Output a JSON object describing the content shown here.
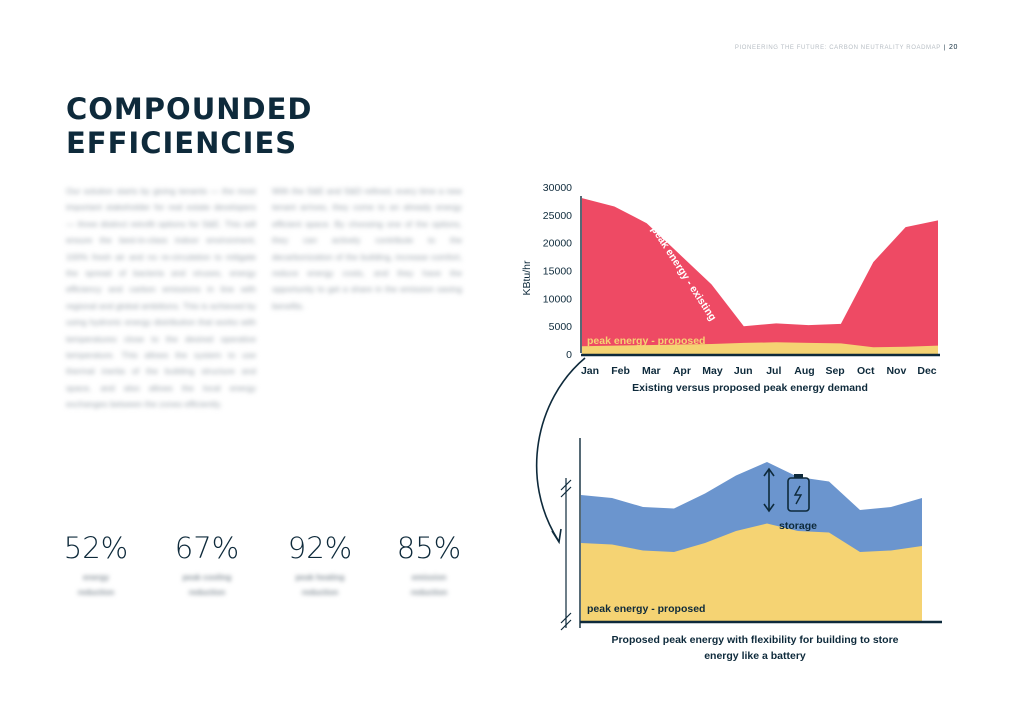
{
  "header": {
    "running_title": "PIONEERING THE FUTURE: CARBON NEUTRALITY ROADMAP",
    "page_number": "20"
  },
  "title_line1": "COMPOUNDED",
  "title_line2": "EFFICIENCIES",
  "body": {
    "col1": "Our solution starts by giving tenants — the most important stakeholder for real estate developers — three distinct retrofit options for S&E. This will ensure the best-in-class indoor environment, 100% fresh air and no re-circulation to mitigate the spread of bacteria and viruses, energy efficiency and carbon emissions in line with regional and global ambitions. This is achieved by using hydronic energy distribution that works with temperatures close to the desired operative temperature. This allows the system to use thermal inertia of the building structure and space, and also allows the local energy exchanges between the zones efficiently.",
    "col2": "With the S&E and S&D refined, every time a new tenant arrives, they come to an already energy efficient space. By choosing one of the options, they can actively contribute to the decarbonization of the building, increase comfort, reduce energy costs, and they have the opportunity to get a share in the emission saving benefits."
  },
  "stats": [
    {
      "value": "52%",
      "label1": "energy",
      "label2": "reduction"
    },
    {
      "value": "67%",
      "label1": "peak cooling",
      "label2": "reduction"
    },
    {
      "value": "92%",
      "label1": "peak heating",
      "label2": "reduction"
    },
    {
      "value": "85%",
      "label1": "emission",
      "label2": "reduction"
    }
  ],
  "colors": {
    "existing": "#ee4a64",
    "proposed": "#f5d373",
    "storage": "#6b95ce",
    "ink": "#0e2a3b"
  },
  "chart_data": [
    {
      "type": "area",
      "title": "Existing versus proposed peak energy demand",
      "ylabel": "KBtu/hr",
      "xlabel": "",
      "ylim": [
        0,
        30000
      ],
      "yticks": [
        0,
        5000,
        10000,
        15000,
        20000,
        25000,
        30000
      ],
      "categories": [
        "Jan",
        "Feb",
        "Mar",
        "Apr",
        "May",
        "Jun",
        "Jul",
        "Aug",
        "Sep",
        "Oct",
        "Nov",
        "Dec"
      ],
      "series": [
        {
          "name": "peak energy - existing",
          "values": [
            28000,
            26500,
            23500,
            18000,
            12500,
            5000,
            5500,
            5200,
            5400,
            16500,
            22800,
            24000
          ]
        },
        {
          "name": "peak energy - proposed",
          "values": [
            1400,
            1500,
            1600,
            1700,
            1800,
            2000,
            2100,
            2000,
            1900,
            1200,
            1300,
            1500
          ]
        }
      ]
    },
    {
      "type": "area",
      "title": "Proposed peak energy with flexibility for building to store energy like a battery",
      "annotation": "storage",
      "series": [
        {
          "name": "peak energy - proposed",
          "values": [
            52,
            51,
            47,
            46,
            52,
            60,
            65,
            60,
            59,
            46,
            47,
            50
          ]
        },
        {
          "name": "",
          "values": [
            84,
            82,
            76,
            75,
            85,
            97,
            106,
            96,
            93,
            74,
            76,
            82
          ]
        }
      ]
    }
  ]
}
